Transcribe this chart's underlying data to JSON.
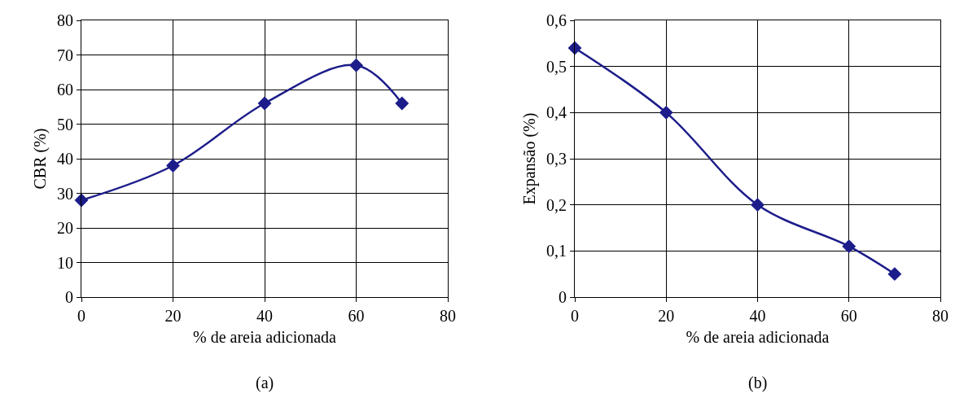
{
  "chart_data": [
    {
      "type": "line",
      "xlabel": "% de areia adicionada",
      "ylabel": "CBR (%)",
      "annotations": [
        "(a)"
      ],
      "x": [
        0,
        20,
        40,
        60,
        70
      ],
      "series": [
        {
          "color": "#1c1c8a",
          "values": [
            28,
            38,
            56,
            67,
            56
          ]
        }
      ],
      "xlim": [
        0,
        80
      ],
      "xticks": [
        0,
        20,
        40,
        60,
        80
      ],
      "ylim": [
        0,
        80
      ],
      "yticks": [
        0,
        10,
        20,
        30,
        40,
        50,
        60,
        70,
        80
      ],
      "grid": true,
      "marker": "diamond",
      "line_style": "solid"
    },
    {
      "type": "line",
      "xlabel": "% de areia adicionada",
      "ylabel": "Expansão (%)",
      "annotations": [
        "(b)"
      ],
      "x": [
        0,
        20,
        40,
        60,
        70
      ],
      "series": [
        {
          "color": "#1c1c8a",
          "values": [
            0.54,
            0.4,
            0.2,
            0.11,
            0.05
          ]
        }
      ],
      "xlim": [
        0,
        80
      ],
      "xticks": [
        0,
        20,
        40,
        60,
        80
      ],
      "ylim": [
        0,
        0.6
      ],
      "yticks": [
        0,
        {
          "value": 0.1,
          "label": "0,1"
        },
        {
          "value": 0.2,
          "label": "0,2"
        },
        {
          "value": 0.3,
          "label": "0,3"
        },
        {
          "value": 0.4,
          "label": "0,4"
        },
        {
          "value": 0.5,
          "label": "0,5"
        },
        {
          "value": 0.6,
          "label": "0,6"
        }
      ],
      "grid": true,
      "marker": "diamond",
      "line_style": "solid"
    }
  ]
}
